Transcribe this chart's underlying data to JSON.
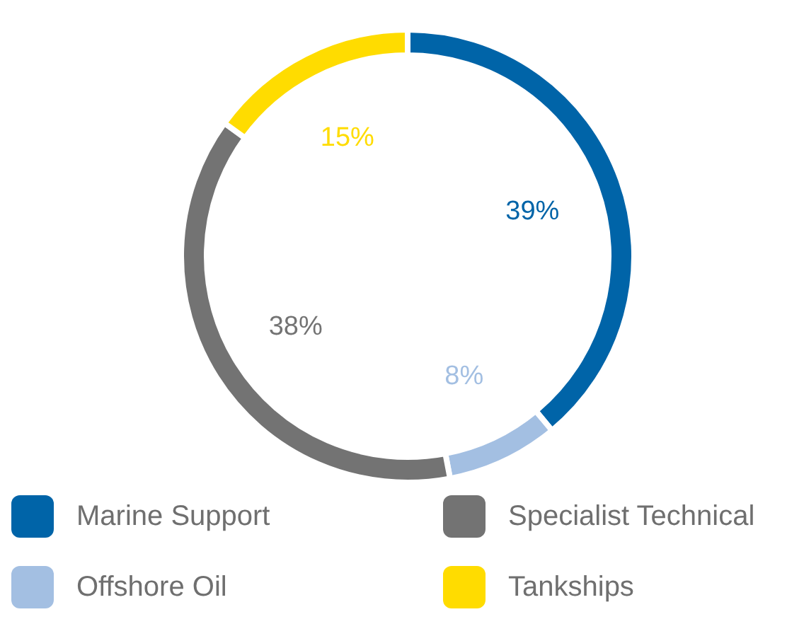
{
  "chart_data": {
    "type": "donut",
    "categories": [
      "Marine Support",
      "Offshore Oil",
      "Specialist Technical",
      "Tankships"
    ],
    "values": [
      39,
      8,
      38,
      15
    ],
    "value_labels": [
      "39%",
      "8%",
      "38%",
      "15%"
    ],
    "colors": [
      "#0064a8",
      "#a3bfe2",
      "#737373",
      "#ffdc00"
    ],
    "legend": "bottom"
  }
}
